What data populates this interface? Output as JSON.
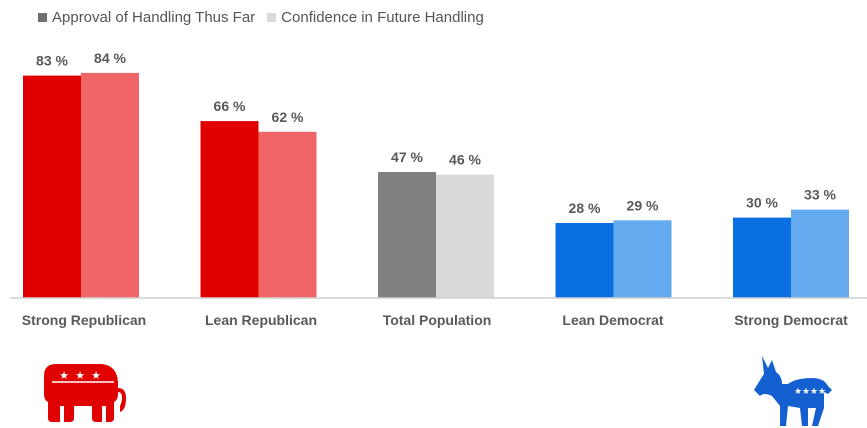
{
  "chart_data": {
    "type": "bar",
    "categories": [
      "Strong Republican",
      "Lean Republican",
      "Total Population",
      "Lean Democrat",
      "Strong Democrat"
    ],
    "series": [
      {
        "name": "Approval of Handling Thus Far",
        "values": [
          83,
          66,
          47,
          28,
          30
        ]
      },
      {
        "name": "Confidence in Future Handling",
        "values": [
          84,
          62,
          46,
          29,
          33
        ]
      }
    ],
    "value_suffix": " %",
    "ylim": [
      0,
      100
    ],
    "grid": false,
    "legend_position": "top-left",
    "colors": {
      "series_1": [
        "#e00000",
        "#e00000",
        "#808080",
        "#0a6fe0",
        "#0a6fe0"
      ],
      "series_2": [
        "#f06666",
        "#f06666",
        "#d9d9d9",
        "#64aaef",
        "#64aaef"
      ],
      "legend_1": "#6f6f6f",
      "legend_2": "#d9d9d9",
      "axis": "#d0d0d0",
      "label_text": "#595959"
    }
  },
  "icons": {
    "left": "republican-elephant-icon",
    "right": "democrat-donkey-icon"
  }
}
